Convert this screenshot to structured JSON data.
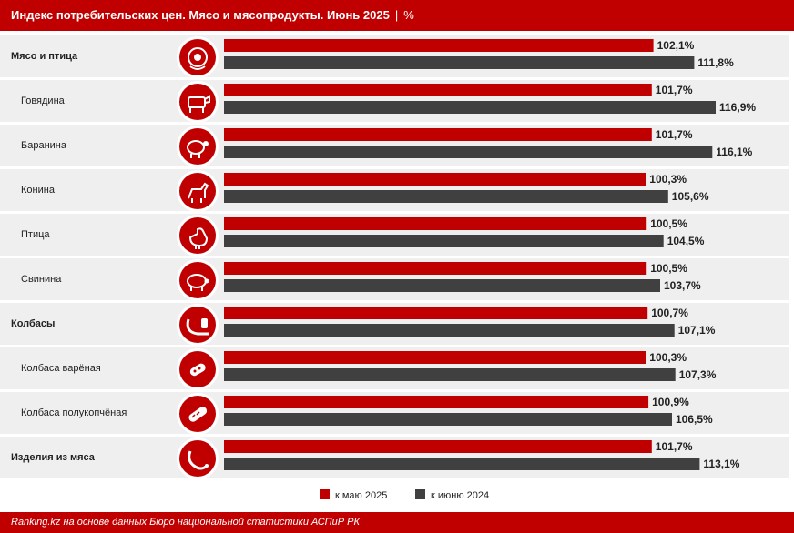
{
  "header": {
    "title": "Индекс потребительских цен. Мясо и мясопродукты. Июнь 2025",
    "separator": "|",
    "unit": "%"
  },
  "legend": [
    {
      "label": "к маю 2025",
      "color": "#c00000"
    },
    {
      "label": "к июню 2024",
      "color": "#404040"
    }
  ],
  "footer": {
    "source": "Ranking.kz на основе данных Бюро национальной статистики АСПиР РК"
  },
  "chart_data": {
    "type": "bar",
    "orientation": "horizontal",
    "categories": [
      "Мясо и птица",
      "Говядина",
      "Баранина",
      "Конина",
      "Птица",
      "Свинина",
      "Колбасы",
      "Колбаса варёная",
      "Колбаса полукопчёная",
      "Изделия из мяса"
    ],
    "category_level": [
      "main",
      "sub",
      "sub",
      "sub",
      "sub",
      "sub",
      "main",
      "sub",
      "sub",
      "main"
    ],
    "icons": [
      "meat-icon",
      "cow-icon",
      "sheep-icon",
      "horse-icon",
      "chicken-icon",
      "pig-icon",
      "sausage-icon",
      "boiled-sausage-icon",
      "smoked-sausage-icon",
      "meat-products-icon"
    ],
    "series": [
      {
        "name": "к маю 2025",
        "color": "#c00000",
        "values": [
          102.1,
          101.7,
          101.7,
          100.3,
          100.5,
          100.5,
          100.7,
          100.3,
          100.9,
          101.7
        ],
        "labels": [
          "102,1%",
          "101,7%",
          "101,7%",
          "100,3%",
          "100,5%",
          "100,5%",
          "100,7%",
          "100,3%",
          "100,9%",
          "101,7%"
        ]
      },
      {
        "name": "к июню 2024",
        "color": "#404040",
        "values": [
          111.8,
          116.9,
          116.1,
          105.6,
          104.5,
          103.7,
          107.1,
          107.3,
          106.5,
          113.1
        ],
        "labels": [
          "111,8%",
          "116,9%",
          "116,1%",
          "105,6%",
          "104,5%",
          "103,7%",
          "107,1%",
          "107,3%",
          "106,5%",
          "113,1%"
        ]
      }
    ],
    "xlim": [
      0,
      116.9
    ],
    "grid": false,
    "legend_position": "bottom"
  }
}
